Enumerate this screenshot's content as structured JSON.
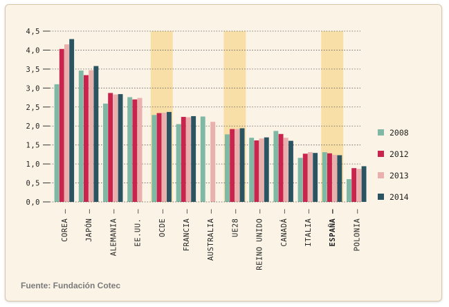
{
  "source": "Fuente: Fundación Cotec",
  "colors": {
    "s2008": "#7fb9a6",
    "s2012": "#c8244e",
    "s2013": "#e9b0ae",
    "s2014": "#2b5462",
    "highlight": "#f8dfa8"
  },
  "chart_data": {
    "type": "bar",
    "ylim": [
      0,
      4.5
    ],
    "yticks": [
      "0,0",
      "0,5",
      "1,0",
      "1,5",
      "2,0",
      "2,5",
      "3,0",
      "3,5",
      "4,0",
      "4,5"
    ],
    "grid": true,
    "legend_position": "right",
    "categories": [
      "COREA",
      "JAPÓN",
      "ALEMANIA",
      "EE.UU.",
      "OCDE",
      "FRANCIA",
      "AUSTRALIA",
      "UE28",
      "REINO UNIDO",
      "CANADÁ",
      "ITALIA",
      "ESPAÑA",
      "POLONIA"
    ],
    "highlighted_categories": [
      "OCDE",
      "UE28",
      "ESPAÑA"
    ],
    "bold_categories": [
      "ESPAÑA"
    ],
    "series": [
      {
        "name": "2008",
        "values": [
          3.1,
          3.46,
          2.59,
          2.76,
          2.29,
          2.05,
          2.25,
          1.78,
          1.69,
          1.87,
          1.16,
          1.31,
          0.6
        ]
      },
      {
        "name": "2012",
        "values": [
          4.03,
          3.34,
          2.87,
          2.7,
          2.34,
          2.24,
          null,
          1.92,
          1.62,
          1.79,
          1.27,
          1.28,
          0.89
        ]
      },
      {
        "name": "2013",
        "values": [
          4.15,
          3.47,
          2.83,
          2.74,
          2.35,
          2.23,
          2.11,
          1.92,
          1.67,
          1.69,
          1.31,
          1.24,
          0.87
        ]
      },
      {
        "name": "2014",
        "values": [
          4.29,
          3.58,
          2.84,
          null,
          2.37,
          2.26,
          null,
          1.94,
          1.7,
          1.61,
          1.29,
          1.23,
          0.94
        ]
      }
    ]
  }
}
